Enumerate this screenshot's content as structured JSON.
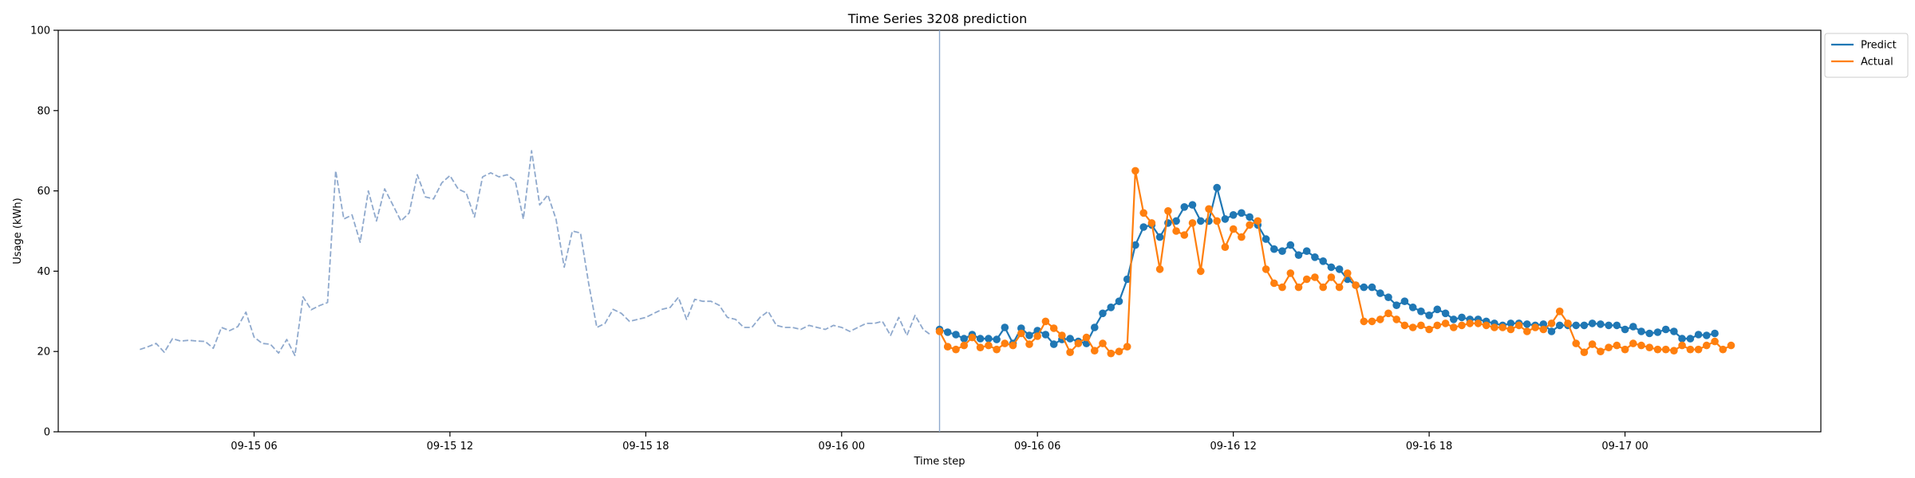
{
  "chart_data": {
    "type": "line",
    "title": "Time Series 3208 prediction",
    "xlabel": "Time step",
    "ylabel": "Usage (kWh)",
    "ylim": [
      0,
      100
    ],
    "yticks": [
      0,
      20,
      40,
      60,
      80,
      100
    ],
    "xlim": [
      "2023-09-15 00:00",
      "2023-09-17 06:00"
    ],
    "xticks": [
      {
        "label": "09-15 06",
        "x": "2023-09-15 06:00"
      },
      {
        "label": "09-15 12",
        "x": "2023-09-15 12:00"
      },
      {
        "label": "09-15 18",
        "x": "2023-09-15 18:00"
      },
      {
        "label": "09-16 00",
        "x": "2023-09-16 00:00"
      },
      {
        "label": "09-16 06",
        "x": "2023-09-16 06:00"
      },
      {
        "label": "09-16 12",
        "x": "2023-09-16 12:00"
      },
      {
        "label": "09-16 18",
        "x": "2023-09-16 18:00"
      },
      {
        "label": "09-17 00",
        "x": "2023-09-17 00:00"
      }
    ],
    "grid": false,
    "legend_position": "outside-top-right",
    "forecast_start": "2023-09-16 03:00",
    "series": [
      {
        "name": "",
        "role": "history",
        "style": "dashed",
        "color": "#8fa9cd",
        "start": "2023-09-15 02:30",
        "step_minutes": 15,
        "values": [
          20.5,
          21.2,
          22.0,
          19.8,
          23.2,
          22.6,
          22.8,
          22.6,
          22.5,
          20.8,
          26.0,
          25.2,
          26.2,
          29.8,
          23.6,
          22.0,
          21.8,
          19.6,
          23.0,
          19.0,
          33.6,
          30.4,
          31.4,
          32.2,
          65.0,
          53.0,
          54.0,
          47.2,
          60.0,
          52.5,
          60.5,
          56.5,
          52.5,
          54.5,
          64.0,
          58.5,
          58.0,
          62.0,
          63.8,
          60.5,
          59.5,
          53.5,
          63.5,
          64.5,
          63.5,
          64.0,
          62.5,
          53.0,
          70.0,
          56.5,
          59.0,
          53.0,
          41.0,
          50.0,
          49.5,
          37.0,
          26.0,
          27.0,
          30.5,
          29.5,
          27.5,
          28.0,
          28.5,
          29.5,
          30.5,
          31.0,
          33.5,
          28.0,
          33.0,
          32.5,
          32.5,
          31.5,
          28.5,
          28.0,
          26.0,
          26.0,
          28.5,
          30.0,
          26.5,
          26.0,
          26.0,
          25.5,
          26.5,
          26.0,
          25.5,
          26.5,
          26.0,
          25.0,
          26.0,
          27.0,
          27.0,
          27.5,
          24.0,
          28.5,
          24.0,
          29.0,
          25.5,
          24.0
        ]
      },
      {
        "name": "Predict",
        "color": "#1f77b4",
        "start": "2023-09-16 03:00",
        "step_minutes": 15,
        "values": [
          25.5,
          24.8,
          24.2,
          23.2,
          24.2,
          23.2,
          23.2,
          23.0,
          26.0,
          22.0,
          25.8,
          24.0,
          25.2,
          24.2,
          21.8,
          23.0,
          23.2,
          22.5,
          22.0,
          26.0,
          29.5,
          31.0,
          32.5,
          38.0,
          46.5,
          51.0,
          51.5,
          48.5,
          52.0,
          52.5,
          56.0,
          56.5,
          52.5,
          52.5,
          60.8,
          53.0,
          54.0,
          54.5,
          53.5,
          51.5,
          48.0,
          45.5,
          45.0,
          46.5,
          44.0,
          45.0,
          43.5,
          42.5,
          41.0,
          40.5,
          38.0,
          36.5,
          36.0,
          36.0,
          34.5,
          33.5,
          31.5,
          32.5,
          31.0,
          30.0,
          29.0,
          30.5,
          29.5,
          28.0,
          28.5,
          28.0,
          28.0,
          27.5,
          27.0,
          26.5,
          27.0,
          27.0,
          26.8,
          26.5,
          26.8,
          25.0,
          26.5,
          26.5,
          26.5,
          26.5,
          27.0,
          26.8,
          26.5,
          26.5,
          25.5,
          26.2,
          25.0,
          24.5,
          24.8,
          25.5,
          25.0,
          23.2,
          23.2,
          24.2,
          24.0,
          24.5
        ]
      },
      {
        "name": "Actual",
        "color": "#ff7f0e",
        "start": "2023-09-16 03:00",
        "step_minutes": 15,
        "values": [
          25.0,
          21.2,
          20.5,
          21.5,
          23.5,
          21.0,
          21.5,
          20.5,
          22.0,
          21.5,
          24.5,
          21.8,
          23.8,
          27.5,
          25.8,
          24.0,
          19.8,
          22.0,
          23.5,
          20.2,
          22.0,
          19.5,
          20.0,
          21.2,
          65.0,
          54.5,
          52.0,
          40.5,
          55.0,
          50.0,
          49.0,
          52.0,
          40.0,
          55.5,
          52.5,
          46.0,
          50.5,
          48.5,
          51.5,
          52.5,
          40.5,
          37.0,
          36.0,
          39.5,
          36.0,
          38.0,
          38.5,
          36.0,
          38.5,
          36.0,
          39.5,
          36.5,
          27.5,
          27.5,
          28.0,
          29.5,
          28.0,
          26.5,
          26.0,
          26.5,
          25.5,
          26.5,
          27.0,
          26.0,
          26.5,
          27.0,
          27.0,
          26.5,
          26.0,
          26.0,
          25.5,
          26.5,
          25.0,
          26.0,
          25.5,
          27.0,
          30.0,
          27.0,
          22.0,
          19.8,
          21.8,
          20.0,
          21.0,
          21.5,
          20.5,
          22.0,
          21.5,
          21.0,
          20.5,
          20.5,
          20.2,
          21.5,
          20.5,
          20.5,
          21.5,
          22.5,
          20.5,
          21.5
        ]
      }
    ]
  }
}
